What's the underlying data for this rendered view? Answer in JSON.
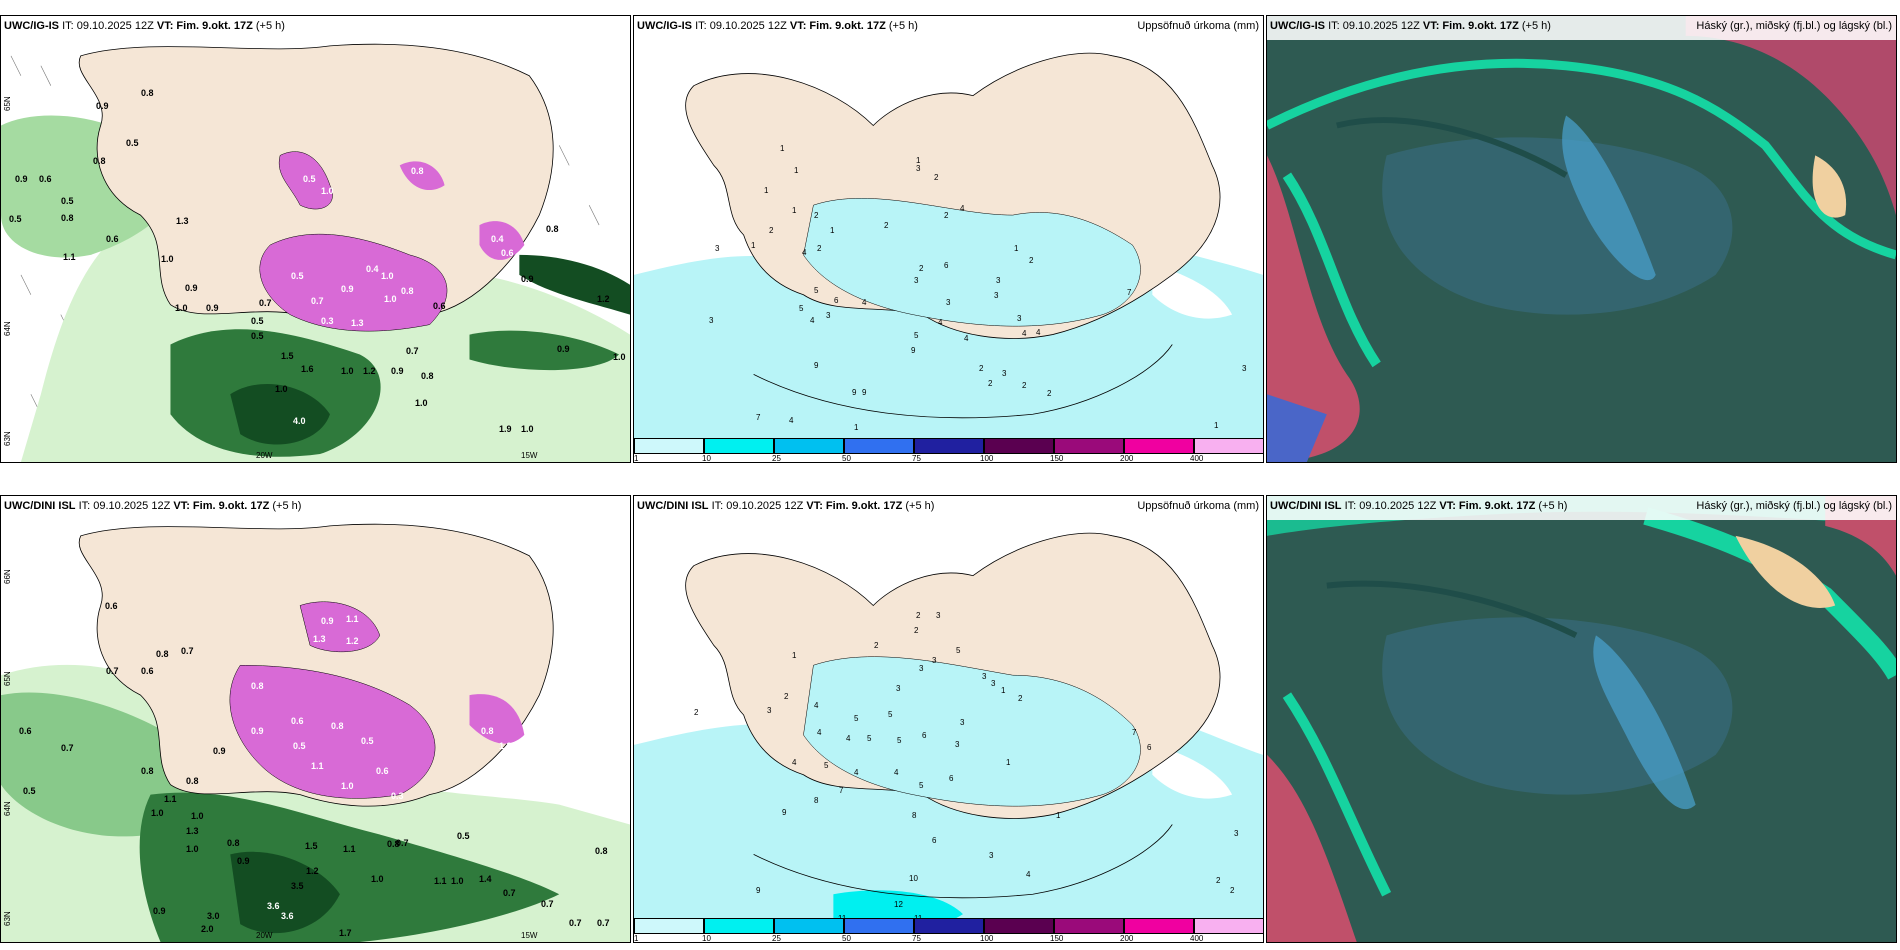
{
  "colors": {
    "land": "#f5e6d6",
    "ocean": "#ffffff",
    "precip_light": "#d6f2cf",
    "precip_mid": "#88c98a",
    "precip_heavy": "#2f7a3c",
    "precip_dark": "#134d22",
    "snow": "#d86ad6",
    "accum_cyan": "#b8f4f7",
    "cloud_dark": "#2e5a52",
    "cloud_teal": "#16d3a0",
    "cloud_red": "#c0506a",
    "cloud_blue": "#4a66c8"
  },
  "rows": [
    {
      "model": "UWC/IG-IS",
      "precip": {
        "it": "IT: 09.10.2025 12Z",
        "vt_label": "VT: Fim. 9.okt. 17Z",
        "lead": "(+5 h)",
        "lon_labels": [
          "20W",
          "15W"
        ],
        "lat_labels": [
          "65N",
          "64N",
          "63N"
        ],
        "values": [
          "0.9",
          "0.8",
          "0.5",
          "0.8",
          "0.9",
          "0.6",
          "0.5",
          "0.5",
          "0.8",
          "0.6",
          "1.0",
          "0.9",
          "0.7",
          "0.5",
          "1.3",
          "1.0",
          "0.9",
          "0.5",
          "1.0",
          "1.2",
          "0.9",
          "1.0",
          "0.7",
          "0.8",
          "1.6",
          "1.5",
          "1.0",
          "4.0",
          "1.9",
          "1.0",
          "0.9",
          "1.2",
          "1.0",
          "0.6",
          "0.8",
          "0.9",
          "1.1"
        ],
        "snow_values": [
          "0.5",
          "0.8",
          "1.0",
          "0.4",
          "0.8",
          "1.0",
          "0.5",
          "0.7",
          "0.9",
          "0.3",
          "1.0",
          "1.3",
          "0.4",
          "0.6"
        ]
      },
      "accum": {
        "it": "IT: 09.10.2025 12Z",
        "vt_label": "VT: Fim. 9.okt. 17Z",
        "lead": "(+5 h)",
        "title": "Uppsöfnuð úrkoma (mm)",
        "values": [
          "1",
          "1",
          "1",
          "1",
          "2",
          "1",
          "2",
          "1",
          "3",
          "4",
          "2",
          "2",
          "2",
          "3",
          "4",
          "1",
          "2",
          "6",
          "2",
          "3",
          "1",
          "2",
          "3",
          "3",
          "5",
          "6",
          "4",
          "4",
          "3",
          "5",
          "3",
          "4",
          "5",
          "4",
          "4",
          "3",
          "4",
          "7",
          "3",
          "9",
          "9",
          "9",
          "9",
          "2",
          "2",
          "3",
          "2",
          "2",
          "3",
          "1",
          "7",
          "4",
          "1"
        ]
      },
      "cloud": {
        "it": "IT: 09.10.2025 12Z",
        "vt_label": "VT: Fim. 9.okt. 17Z",
        "lead": "(+5 h)",
        "title": "Háský (gr.), miðský (fj.bl.) og lágský (bl.)"
      }
    },
    {
      "model": "UWC/DINI ISL",
      "precip": {
        "it": "IT: 09.10.2025 12Z",
        "vt_label": "VT: Fim. 9.okt. 17Z",
        "lead": "(+5 h)",
        "lon_labels": [
          "20W",
          "15W"
        ],
        "lat_labels": [
          "66N",
          "65N",
          "64N",
          "63N"
        ],
        "values": [
          "0.6",
          "0.8",
          "0.7",
          "0.6",
          "0.6",
          "0.5",
          "0.7",
          "0.8",
          "0.9",
          "1.0",
          "0.8",
          "1.1",
          "0.7",
          "1.0",
          "1.3",
          "1.0",
          "0.8",
          "0.9",
          "0.8",
          "1.1",
          "0.7",
          "1.5",
          "0.5",
          "1.2",
          "3.5",
          "1.0",
          "1.1",
          "1.0",
          "1.4",
          "0.8",
          "0.7",
          "0.7",
          "0.9",
          "3.0",
          "2.0",
          "3.6",
          "3.6",
          "1.7",
          "0.7",
          "0.7"
        ],
        "snow_values": [
          "0.9",
          "1.1",
          "1.3",
          "1.2",
          "0.8",
          "0.5",
          "1.1",
          "0.6",
          "0.9",
          "0.8",
          "0.5",
          "0.6",
          "1.0",
          "0.3",
          "0.8",
          "1.3"
        ]
      },
      "accum": {
        "it": "IT: 09.10.2025 12Z",
        "vt_label": "VT: Fim. 9.okt. 17Z",
        "lead": "(+5 h)",
        "title": "Uppsöfnuð úrkoma (mm)",
        "values": [
          "2",
          "3",
          "1",
          "2",
          "3",
          "5",
          "2",
          "3",
          "3",
          "3",
          "3",
          "1",
          "2",
          "2",
          "2",
          "3",
          "4",
          "5",
          "5",
          "3",
          "4",
          "4",
          "5",
          "5",
          "6",
          "3",
          "1",
          "4",
          "5",
          "4",
          "4",
          "5",
          "6",
          "7",
          "8",
          "9",
          "8",
          "9",
          "10",
          "6",
          "3",
          "4",
          "2",
          "2",
          "12",
          "11",
          "11",
          "1",
          "3",
          "7",
          "6"
        ]
      },
      "cloud": {
        "it": "IT: 09.10.2025 12Z",
        "vt_label": "VT: Fim. 9.okt. 17Z",
        "lead": "(+5 h)",
        "title": "Háský (gr.), miðský (fj.bl.) og lágský (bl.)"
      }
    }
  ],
  "colorbar": {
    "ticks": [
      "1",
      "10",
      "25",
      "50",
      "75",
      "100",
      "150",
      "200",
      "400"
    ],
    "colors": [
      "#cef8fb",
      "#00f0f0",
      "#00c0f0",
      "#3070f0",
      "#2020a0",
      "#5a0050",
      "#9a0a7a",
      "#f000a0",
      "#f8b0f0"
    ]
  }
}
